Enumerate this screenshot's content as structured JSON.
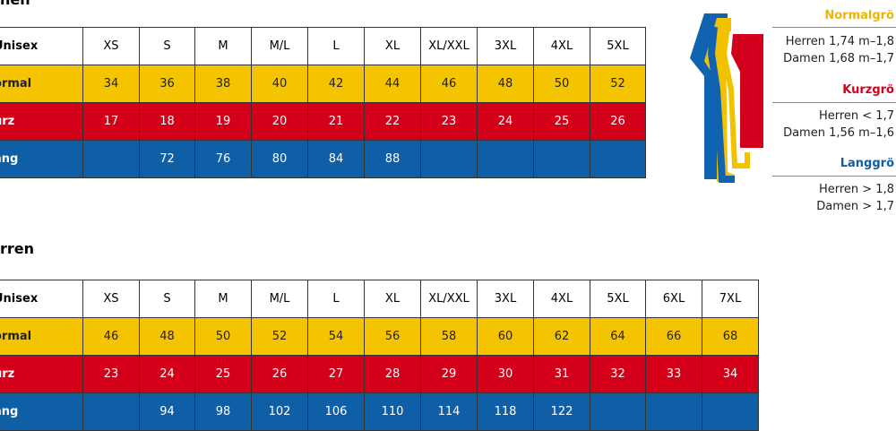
{
  "tables": [
    {
      "title": "nen",
      "header": [
        "Unisex",
        "XS",
        "S",
        "M",
        "M/L",
        "L",
        "XL",
        "XL/XXL",
        "3XL",
        "4XL",
        "5XL"
      ],
      "rows": [
        {
          "label": "ormal",
          "cells": [
            34,
            36,
            38,
            40,
            42,
            44,
            46,
            48,
            50,
            52
          ]
        },
        {
          "label": "urz",
          "cells": [
            17,
            18,
            19,
            20,
            21,
            22,
            23,
            24,
            25,
            26
          ]
        },
        {
          "label": "ang",
          "cells": [
            null,
            72,
            76,
            80,
            84,
            88,
            null,
            null,
            null,
            null
          ]
        }
      ]
    },
    {
      "title": "rren",
      "header": [
        "Unisex",
        "XS",
        "S",
        "M",
        "M/L",
        "L",
        "XL",
        "XL/XXL",
        "3XL",
        "4XL",
        "5XL",
        "6XL",
        "7XL"
      ],
      "rows": [
        {
          "label": "ormal",
          "cells": [
            46,
            48,
            50,
            52,
            54,
            56,
            58,
            60,
            62,
            64,
            66,
            68
          ]
        },
        {
          "label": "urz",
          "cells": [
            23,
            24,
            25,
            26,
            27,
            28,
            29,
            30,
            31,
            32,
            33,
            34
          ]
        },
        {
          "label": "ang",
          "cells": [
            null,
            94,
            98,
            102,
            106,
            110,
            114,
            118,
            122,
            null,
            null,
            null
          ]
        }
      ]
    }
  ],
  "legend": [
    {
      "title": "Normalgrö",
      "lines": [
        "Herren 1,74 m–1,8",
        "Damen 1,68 m–1,7"
      ]
    },
    {
      "title": "Kurzgrö",
      "lines": [
        "Herren < 1,7",
        "Damen 1,56 m–1,6"
      ]
    },
    {
      "title": "Langgrö",
      "lines": [
        "Herren > 1,8",
        "Damen > 1,7"
      ]
    }
  ]
}
